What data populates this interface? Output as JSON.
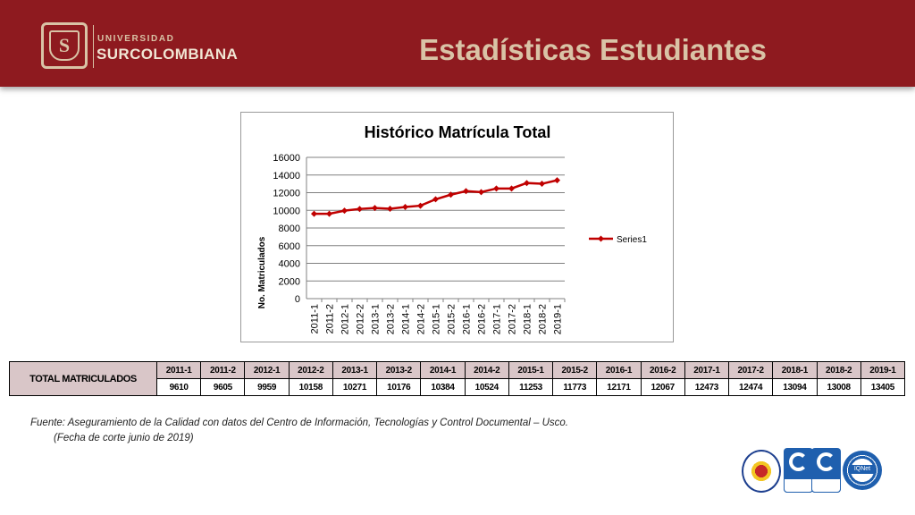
{
  "header": {
    "brand_top": "UNIVERSIDAD",
    "brand_name": "SURCOLOMBIANA",
    "logo_letter": "S",
    "title": "Estadísticas Estudiantes",
    "band_color": "#8e1a1f",
    "title_color": "#d9c3a6"
  },
  "chart_data": {
    "type": "line",
    "title": "Histórico Matrícula Total",
    "xlabel": "",
    "ylabel": "No. Matriculados",
    "categories": [
      "2011-1",
      "2011-2",
      "2012-1",
      "2012-2",
      "2013-1",
      "2013-2",
      "2014-1",
      "2014-2",
      "2015-1",
      "2015-2",
      "2016-1",
      "2016-2",
      "2017-1",
      "2017-2",
      "2018-1",
      "2018-2",
      "2019-1"
    ],
    "series": [
      {
        "name": "Series1",
        "values": [
          9610,
          9605,
          9959,
          10158,
          10271,
          10176,
          10384,
          10524,
          11253,
          11773,
          12171,
          12067,
          12473,
          12474,
          13094,
          13008,
          13405
        ],
        "color": "#c00000"
      }
    ],
    "ylim": [
      0,
      16000
    ],
    "yticks": [
      "0",
      "2000",
      "4000",
      "6000",
      "8000",
      "10000",
      "12000",
      "14000",
      "16000"
    ],
    "grid": true,
    "legend_position": "right"
  },
  "table": {
    "row_label": "TOTAL MATRICULADOS",
    "periods": [
      "2011-1",
      "2011-2",
      "2012-1",
      "2012-2",
      "2013-1",
      "2013-2",
      "2014-1",
      "2014-2",
      "2015-1",
      "2015-2",
      "2016-1",
      "2016-2",
      "2017-1",
      "2017-2",
      "2018-1",
      "2018-2",
      "2019-1"
    ],
    "values": [
      "9610",
      "9605",
      "9959",
      "10158",
      "10271",
      "10176",
      "10384",
      "10524",
      "11253",
      "11773",
      "12171",
      "12067",
      "12473",
      "12474",
      "13094",
      "13008",
      "13405"
    ]
  },
  "source": {
    "line1": "Fuente: Aseguramiento de la Calidad con datos del Centro de Información, Tecnologías y Control Documental – Usco.",
    "line2": "(Fecha de corte junio de 2019)"
  },
  "certifications": {
    "iqnet": "IQNet"
  }
}
